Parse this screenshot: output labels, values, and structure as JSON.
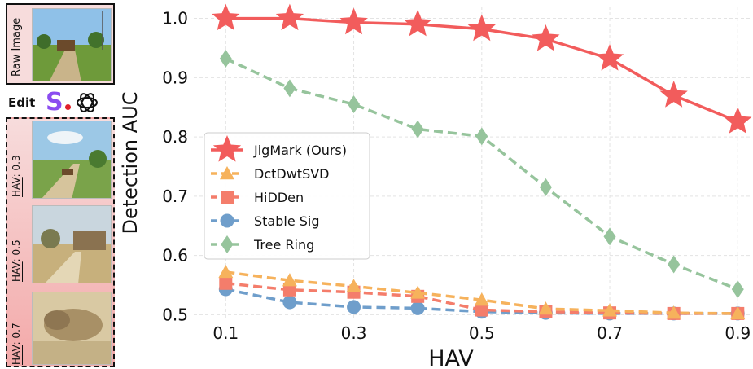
{
  "side_panel": {
    "raw_label": "Raw Image",
    "edit_label": "Edit",
    "edit_logo_letter": "S",
    "hav_prefix": "HAV",
    "hav_examples": [
      "0.3",
      "0.5",
      "0.7"
    ]
  },
  "chart_data": {
    "type": "line",
    "xlabel": "HAV",
    "ylabel": "Detection AUC",
    "x": [
      0.1,
      0.2,
      0.3,
      0.4,
      0.5,
      0.6,
      0.7,
      0.8,
      0.9
    ],
    "xticks": [
      "0.1",
      "0.3",
      "0.5",
      "0.7",
      "0.9"
    ],
    "xlim": [
      0.05,
      0.92
    ],
    "yticks": [
      "0.5",
      "0.6",
      "0.7",
      "0.8",
      "0.9",
      "1.0"
    ],
    "ylim": [
      0.495,
      1.02
    ],
    "grid": true,
    "legend_position": "center-left",
    "series": [
      {
        "name": "JigMark (Ours)",
        "color": "#f25c5c",
        "marker": "star",
        "dash": "solid",
        "values": [
          1.0,
          1.0,
          0.993,
          0.99,
          0.982,
          0.965,
          0.932,
          0.87,
          0.826
        ]
      },
      {
        "name": "DctDwtSVD",
        "color": "#f6b25c",
        "marker": "triangle",
        "dash": "dashed",
        "values": [
          0.572,
          0.558,
          0.548,
          0.537,
          0.525,
          0.51,
          0.507,
          0.503,
          0.502
        ]
      },
      {
        "name": "HiDDen",
        "color": "#f47d6b",
        "marker": "square",
        "dash": "dashed",
        "values": [
          0.553,
          0.542,
          0.538,
          0.531,
          0.508,
          0.505,
          0.503,
          0.502,
          0.502
        ]
      },
      {
        "name": "Stable Sig",
        "color": "#6f9ecb",
        "marker": "circle",
        "dash": "dashed",
        "values": [
          0.543,
          0.521,
          0.513,
          0.511,
          0.505,
          0.503,
          0.502,
          0.502,
          0.502
        ]
      },
      {
        "name": "Tree Ring",
        "color": "#96c49c",
        "marker": "diamond",
        "dash": "dashed",
        "values": [
          0.932,
          0.882,
          0.855,
          0.813,
          0.801,
          0.715,
          0.632,
          0.585,
          0.543
        ]
      }
    ]
  }
}
